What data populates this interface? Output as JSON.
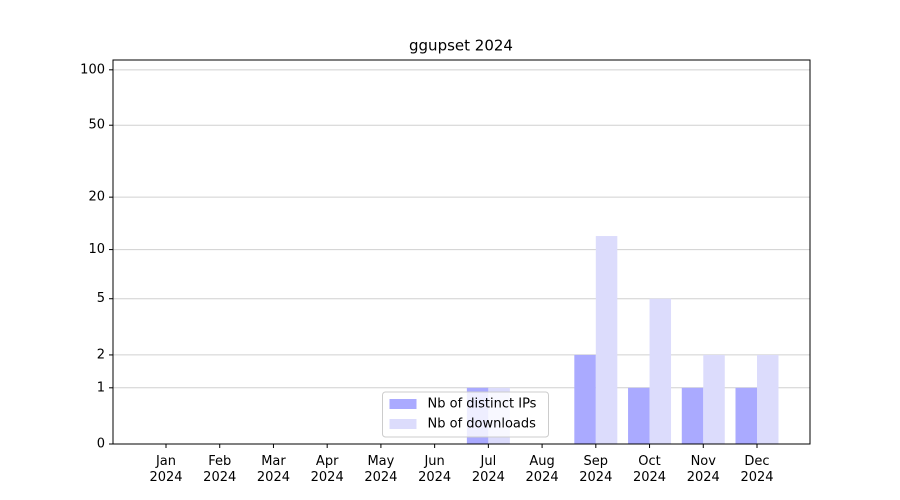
{
  "chart_data": {
    "type": "bar",
    "title": "ggupset 2024",
    "categories": [
      [
        "Jan",
        "2024"
      ],
      [
        "Feb",
        "2024"
      ],
      [
        "Mar",
        "2024"
      ],
      [
        "Apr",
        "2024"
      ],
      [
        "May",
        "2024"
      ],
      [
        "Jun",
        "2024"
      ],
      [
        "Jul",
        "2024"
      ],
      [
        "Aug",
        "2024"
      ],
      [
        "Sep",
        "2024"
      ],
      [
        "Oct",
        "2024"
      ],
      [
        "Nov",
        "2024"
      ],
      [
        "Dec",
        "2024"
      ]
    ],
    "series": [
      {
        "name": "Nb of distinct IPs",
        "color": "#aaaaff",
        "values": [
          0,
          0,
          0,
          0,
          0,
          0,
          1,
          0,
          2,
          1,
          1,
          1
        ]
      },
      {
        "name": "Nb of downloads",
        "color": "#dcdcfc",
        "values": [
          0,
          0,
          0,
          0,
          0,
          0,
          1,
          0,
          12,
          5,
          2,
          2
        ]
      }
    ],
    "yscale": "log1p",
    "ylim": [
      0,
      113
    ],
    "yticks": [
      0,
      1,
      2,
      5,
      10,
      20,
      50,
      100
    ],
    "grid": true,
    "legend": "lower center"
  }
}
